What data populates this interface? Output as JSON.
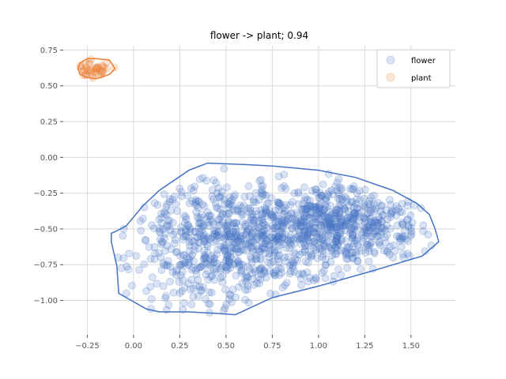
{
  "chart_data": {
    "type": "scatter",
    "title": "flower -> plant; 0.94",
    "xlabel": "",
    "ylabel": "",
    "xlim": [
      -0.38,
      1.74
    ],
    "ylim": [
      -1.24,
      0.78
    ],
    "xticks": [
      -0.25,
      0.0,
      0.25,
      0.5,
      0.75,
      1.0,
      1.25,
      1.5
    ],
    "xtick_labels": [
      "−0.25",
      "0.00",
      "0.25",
      "0.50",
      "0.75",
      "1.00",
      "1.25",
      "1.50"
    ],
    "yticks": [
      -1.0,
      -0.75,
      -0.5,
      -0.25,
      0.0,
      0.25,
      0.5,
      0.75
    ],
    "ytick_labels": [
      "−1.00",
      "−0.75",
      "−0.50",
      "−0.25",
      "0.00",
      "0.25",
      "0.50",
      "0.75"
    ],
    "grid": true,
    "legend_position": "top-right",
    "series": [
      {
        "name": "flower",
        "color": "#4472c4",
        "alpha": 0.2,
        "hull": [
          [
            -0.1,
            -0.52
          ],
          [
            -0.04,
            -0.48
          ],
          [
            0.05,
            -0.34
          ],
          [
            0.14,
            -0.23
          ],
          [
            0.3,
            -0.09
          ],
          [
            0.4,
            -0.04
          ],
          [
            0.6,
            -0.05
          ],
          [
            0.75,
            -0.06
          ],
          [
            1.0,
            -0.09
          ],
          [
            1.2,
            -0.14
          ],
          [
            1.4,
            -0.23
          ],
          [
            1.53,
            -0.32
          ],
          [
            1.6,
            -0.4
          ],
          [
            1.63,
            -0.5
          ],
          [
            1.65,
            -0.59
          ],
          [
            1.56,
            -0.69
          ],
          [
            1.3,
            -0.79
          ],
          [
            1.0,
            -0.9
          ],
          [
            0.75,
            -0.98
          ],
          [
            0.55,
            -1.1
          ],
          [
            0.44,
            -1.09
          ],
          [
            0.3,
            -1.08
          ],
          [
            0.14,
            -1.08
          ],
          [
            0.07,
            -1.06
          ],
          [
            -0.04,
            -0.98
          ],
          [
            -0.08,
            -0.95
          ],
          [
            -0.09,
            -0.76
          ],
          [
            -0.12,
            -0.59
          ],
          [
            -0.12,
            -0.53
          ]
        ],
        "distribution": {
          "count": 1300,
          "clusters": [
            {
              "cx": 0.55,
              "cy": -0.6,
              "sx": 0.28,
              "sy": 0.22,
              "weight": 0.55
            },
            {
              "cx": 1.1,
              "cy": -0.48,
              "sx": 0.22,
              "sy": 0.14,
              "weight": 0.45
            }
          ]
        }
      },
      {
        "name": "plant",
        "color": "#ed7d31",
        "alpha": 0.2,
        "hull": [
          [
            -0.3,
            0.62
          ],
          [
            -0.29,
            0.58
          ],
          [
            -0.25,
            0.56
          ],
          [
            -0.2,
            0.55
          ],
          [
            -0.13,
            0.58
          ],
          [
            -0.1,
            0.62
          ],
          [
            -0.13,
            0.68
          ],
          [
            -0.2,
            0.69
          ],
          [
            -0.25,
            0.69
          ],
          [
            -0.29,
            0.66
          ]
        ],
        "distribution": {
          "count": 40,
          "clusters": [
            {
              "cx": -0.21,
              "cy": 0.62,
              "sx": 0.045,
              "sy": 0.035,
              "weight": 1.0
            }
          ]
        }
      }
    ]
  }
}
